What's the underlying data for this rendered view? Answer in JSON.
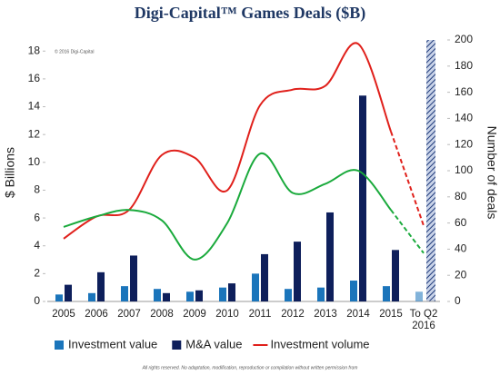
{
  "chart_data": {
    "type": "bar-line",
    "title": "Digi-Capital™ Games Deals ($B)",
    "note": "© 2016 Digi-Capital",
    "footer": "All rights reserved. No adaptation, modification, reproduction or compilation without written permission from",
    "y_label": "$ Billions",
    "y2_label": "Number of deals",
    "categories": [
      "2005",
      "2006",
      "2007",
      "2008",
      "2009",
      "2010",
      "2011",
      "2012",
      "2013",
      "2014",
      "2015",
      "To Q2 2016"
    ],
    "ylim": [
      0,
      18.8
    ],
    "yticks": [
      0,
      2,
      4,
      6,
      8,
      10,
      12,
      14,
      16,
      18
    ],
    "y2lim": [
      0,
      200
    ],
    "y2ticks": [
      0,
      20,
      40,
      60,
      80,
      100,
      120,
      140,
      160,
      180,
      200
    ],
    "series": [
      {
        "name": "Investment value",
        "kind": "bar",
        "color": "#1b75bb",
        "values": [
          0.5,
          0.6,
          1.1,
          0.9,
          0.7,
          1.0,
          2.0,
          0.9,
          1.0,
          1.5,
          1.1,
          0.7
        ]
      },
      {
        "name": "M&A value",
        "kind": "bar",
        "color": "#0e1f5b",
        "values": [
          1.2,
          2.1,
          3.3,
          0.6,
          0.8,
          1.3,
          3.4,
          4.3,
          6.4,
          14.8,
          3.7,
          null
        ]
      },
      {
        "name": "Investment volume",
        "kind": "line",
        "axis": "y2",
        "color": "#e0201b",
        "values": [
          48,
          65,
          70,
          112,
          110,
          85,
          150,
          162,
          165,
          197,
          130,
          58
        ]
      },
      {
        "kind": "line",
        "axis": "y2",
        "color": "#1aaa3c",
        "values": [
          57,
          65,
          70,
          62,
          32,
          60,
          113,
          83,
          90,
          100,
          70,
          37
        ]
      }
    ]
  }
}
